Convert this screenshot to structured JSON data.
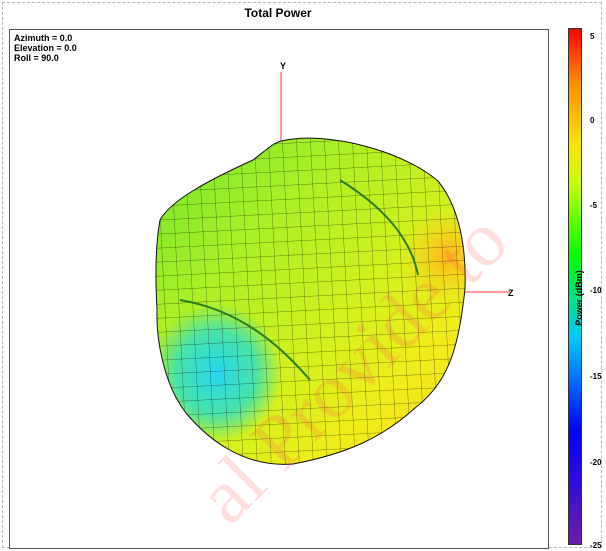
{
  "title": "Total Power",
  "view": {
    "azimuth": "Azimuth = 0.0",
    "elevation": "Elevation = 0.0",
    "roll": "Roll = 90.0"
  },
  "axes": {
    "y_label": "Y",
    "z_label": "Z"
  },
  "colorbar": {
    "label": "Power (dBm)",
    "ticks": [
      "5",
      "0",
      "-5",
      "-10",
      "-15",
      "-20",
      "-25"
    ],
    "range": [
      -25,
      5
    ],
    "colors": [
      "#6b1da6",
      "#0000ff",
      "#00c8ff",
      "#00ff00",
      "#c8ff00",
      "#ffe100",
      "#ff8a00",
      "#ff0000"
    ]
  },
  "accent": {
    "axis_color": "#ff3030",
    "mesh_color": "#000000"
  }
}
